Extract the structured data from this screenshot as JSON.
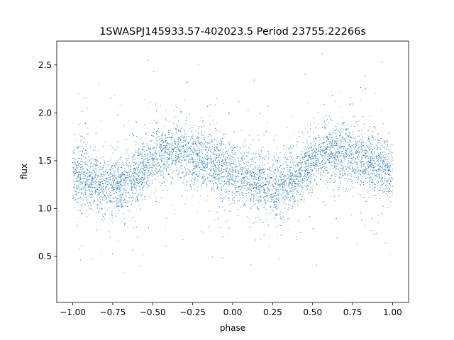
{
  "chart_data": {
    "type": "scatter",
    "title": "1SWASPJ145933.57-402023.5 Period 23755.22266s",
    "xlabel": "phase",
    "ylabel": "flux",
    "xlim": [
      -1.1,
      1.1
    ],
    "ylim": [
      0.02,
      2.75
    ],
    "x_ticks": [
      "−1.00",
      "−0.75",
      "−0.50",
      "−0.25",
      "0.00",
      "0.25",
      "0.50",
      "0.75",
      "1.00"
    ],
    "x_tick_values": [
      -1.0,
      -0.75,
      -0.5,
      -0.25,
      0.0,
      0.25,
      0.5,
      0.75,
      1.0
    ],
    "y_ticks": [
      "0.5",
      "1.0",
      "1.5",
      "2.0",
      "2.5"
    ],
    "y_tick_values": [
      0.5,
      1.0,
      1.5,
      2.0,
      2.5
    ],
    "grid": false,
    "marker_color": "#1f77b4",
    "phase_range": [
      -1.0,
      1.0
    ],
    "series": [
      {
        "phase": [
          -1.0,
          -0.9,
          -0.8,
          -0.7,
          -0.6,
          -0.5,
          -0.4,
          -0.3,
          -0.2,
          -0.1,
          0.0,
          0.1,
          0.2,
          0.3,
          0.4,
          0.5,
          0.6,
          0.7,
          0.8,
          0.9,
          1.0
        ],
        "median_flux": [
          1.36,
          1.31,
          1.25,
          1.24,
          1.33,
          1.5,
          1.6,
          1.58,
          1.52,
          1.45,
          1.38,
          1.31,
          1.25,
          1.24,
          1.33,
          1.5,
          1.6,
          1.58,
          1.52,
          1.45,
          1.38
        ]
      }
    ]
  }
}
